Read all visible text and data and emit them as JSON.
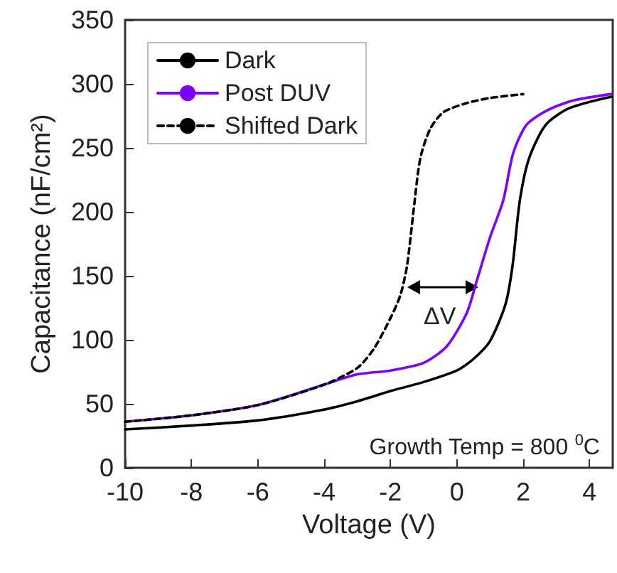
{
  "chart_data": {
    "type": "line",
    "xlabel": "Voltage (V)",
    "ylabel": "Capacitance (nF/cm²)",
    "xlim": [
      -10,
      4.7
    ],
    "ylim": [
      0,
      350
    ],
    "xticks": [
      -10,
      -8,
      -6,
      -4,
      -2,
      0,
      2,
      4
    ],
    "yticks": [
      0,
      50,
      100,
      150,
      200,
      250,
      300,
      350
    ],
    "grid": false,
    "legend": "top left",
    "marker": "none",
    "annotations": [
      "ΔV",
      "Growth Temp = 800 $^{0}$C"
    ],
    "series": [
      {
        "name": "Dark",
        "color": "#000000",
        "line_style": "solid",
        "x": [
          -10,
          -8,
          -6,
          -4.1,
          -3,
          -2,
          -1,
          0,
          0.5,
          1,
          1.47,
          1.68,
          1.9,
          2.18,
          2.68,
          3.39,
          4.66
        ],
        "values": [
          30,
          33,
          37,
          45,
          52,
          60,
          67,
          76,
          85,
          99,
          128,
          158,
          209,
          242,
          268,
          281,
          290
        ]
      },
      {
        "name": "Post DUV",
        "color": "#8000ff",
        "line_style": "solid",
        "x": [
          -10,
          -8,
          -6,
          -4,
          -3,
          -2,
          -1,
          -0.3,
          0.3,
          0.6,
          1,
          1.4,
          1.7,
          2.1,
          2.7,
          3.5,
          4.66
        ],
        "values": [
          36,
          41,
          49,
          65,
          73,
          76,
          82,
          95,
          121,
          146,
          180,
          209,
          246,
          268,
          279,
          287,
          292
        ]
      },
      {
        "name": "Shifted Dark",
        "color": "#000000",
        "line_style": "dashed",
        "x": [
          -10,
          -8,
          -6,
          -4,
          -3,
          -2.5,
          -2,
          -1.7,
          -1.5,
          -1.3,
          -1.1,
          -0.8,
          -0.4,
          0.3,
          1,
          2
        ],
        "values": [
          36,
          41,
          49,
          65,
          78,
          93,
          117,
          135,
          158,
          202,
          242,
          265,
          278,
          285,
          289,
          292
        ]
      }
    ]
  }
}
